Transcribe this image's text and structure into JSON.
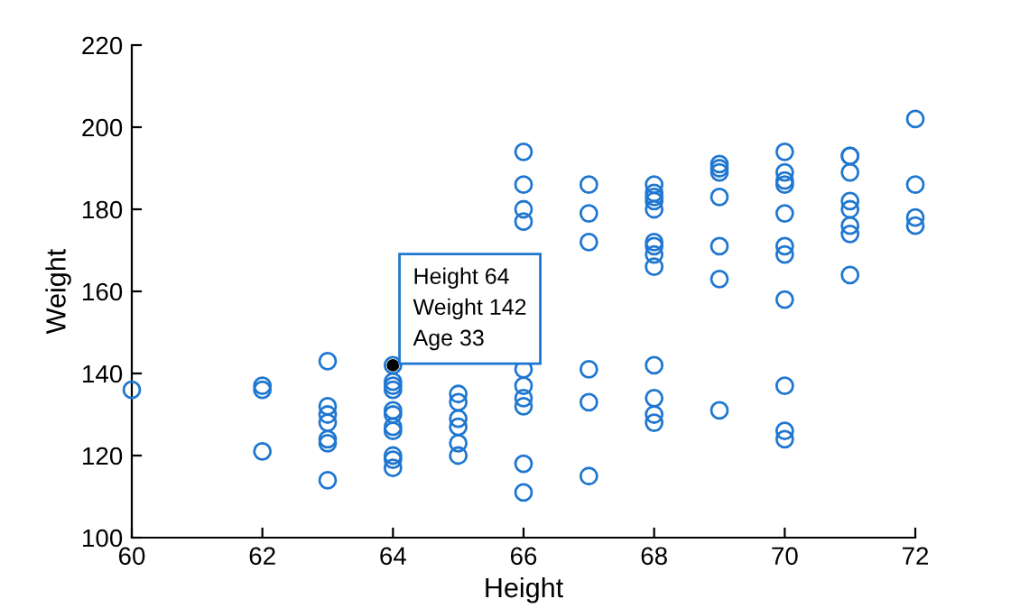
{
  "chart_data": {
    "type": "scatter",
    "xlabel": "Height",
    "ylabel": "Weight",
    "marker": "circle",
    "grid": false,
    "xlim": [
      60,
      72
    ],
    "xticks": [
      60,
      62,
      64,
      66,
      68,
      70,
      72
    ],
    "ylim": [
      100,
      220
    ],
    "yticks": [
      100,
      120,
      140,
      160,
      180,
      200,
      220
    ],
    "series": [
      {
        "color": "#1f77d0",
        "x": [
          60,
          62,
          62,
          62,
          63,
          63,
          63,
          63,
          63,
          63,
          63,
          64,
          64,
          64,
          64,
          64,
          64,
          64,
          64,
          64,
          64,
          64,
          65,
          65,
          65,
          65,
          65,
          65,
          66,
          66,
          66,
          66,
          66,
          66,
          66,
          66,
          66,
          66,
          67,
          67,
          67,
          67,
          67,
          67,
          68,
          68,
          68,
          68,
          68,
          68,
          68,
          68,
          68,
          68,
          68,
          68,
          68,
          69,
          69,
          69,
          69,
          69,
          69,
          69,
          70,
          70,
          70,
          70,
          70,
          70,
          70,
          70,
          70,
          70,
          70,
          71,
          71,
          71,
          71,
          71,
          71,
          71,
          71,
          72,
          72,
          72,
          72
        ],
        "values": [
          136,
          137,
          136,
          121,
          143,
          132,
          130,
          128,
          124,
          123,
          114,
          142,
          138,
          137,
          136,
          131,
          130,
          127,
          126,
          120,
          119,
          117,
          135,
          133,
          129,
          127,
          123,
          120,
          194,
          186,
          180,
          177,
          141,
          137,
          134,
          132,
          118,
          111,
          186,
          179,
          172,
          141,
          133,
          115,
          186,
          184,
          183,
          182,
          180,
          172,
          171,
          169,
          166,
          142,
          134,
          130,
          128,
          191,
          190,
          189,
          183,
          171,
          163,
          131,
          194,
          189,
          187,
          186,
          179,
          171,
          169,
          158,
          137,
          126,
          124,
          193,
          193,
          189,
          182,
          180,
          176,
          174,
          164,
          202,
          186,
          178,
          176
        ]
      }
    ],
    "annotations": [
      {
        "text": "Height 64\nWeight 142\nAge 33",
        "x": 64,
        "y": 142
      }
    ]
  }
}
